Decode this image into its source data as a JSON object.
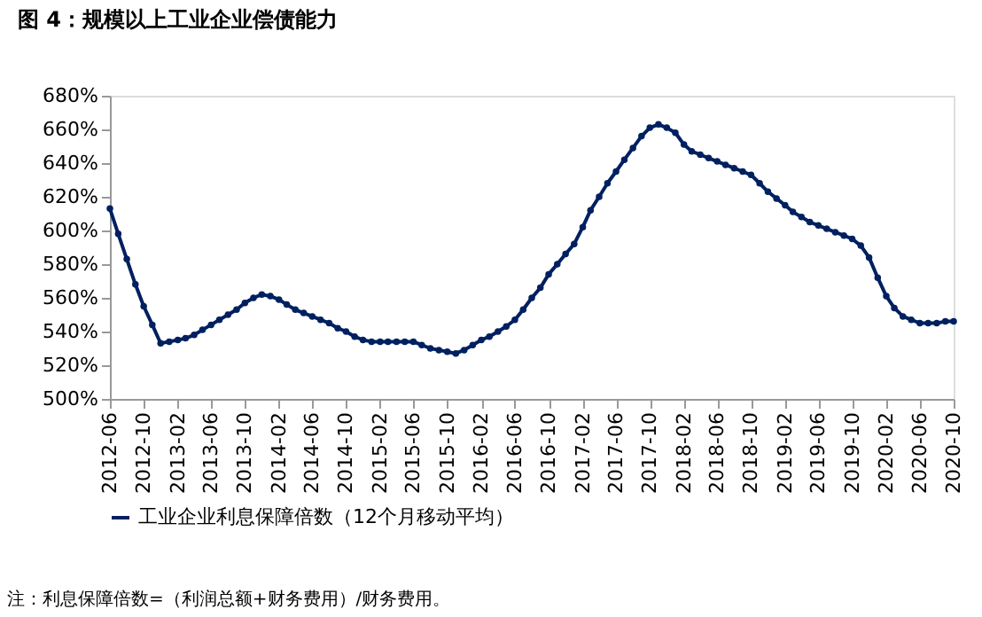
{
  "chart_data": {
    "type": "line",
    "title": "图 4：规模以上工业企业偿债能力",
    "x": [
      "2012-06",
      "2012-07",
      "2012-08",
      "2012-09",
      "2012-10",
      "2012-11",
      "2012-12",
      "2013-01",
      "2013-02",
      "2013-03",
      "2013-04",
      "2013-05",
      "2013-06",
      "2013-07",
      "2013-08",
      "2013-09",
      "2013-10",
      "2013-11",
      "2013-12",
      "2014-01",
      "2014-02",
      "2014-03",
      "2014-04",
      "2014-05",
      "2014-06",
      "2014-07",
      "2014-08",
      "2014-09",
      "2014-10",
      "2014-11",
      "2014-12",
      "2015-01",
      "2015-02",
      "2015-03",
      "2015-04",
      "2015-05",
      "2015-06",
      "2015-07",
      "2015-08",
      "2015-09",
      "2015-10",
      "2015-11",
      "2015-12",
      "2016-01",
      "2016-02",
      "2016-03",
      "2016-04",
      "2016-05",
      "2016-06",
      "2016-07",
      "2016-08",
      "2016-09",
      "2016-10",
      "2016-11",
      "2016-12",
      "2017-01",
      "2017-02",
      "2017-03",
      "2017-04",
      "2017-05",
      "2017-06",
      "2017-07",
      "2017-08",
      "2017-09",
      "2017-10",
      "2017-11",
      "2017-12",
      "2018-01",
      "2018-02",
      "2018-03",
      "2018-04",
      "2018-05",
      "2018-06",
      "2018-07",
      "2018-08",
      "2018-09",
      "2018-10",
      "2018-11",
      "2018-12",
      "2019-01",
      "2019-02",
      "2019-03",
      "2019-04",
      "2019-05",
      "2019-06",
      "2019-07",
      "2019-08",
      "2019-09",
      "2019-10",
      "2019-11",
      "2019-12",
      "2020-01",
      "2020-02",
      "2020-03",
      "2020-04",
      "2020-05",
      "2020-06",
      "2020-07",
      "2020-08",
      "2020-09",
      "2020-10"
    ],
    "series": [
      {
        "name": "工业企业利息保障倍数（12个月移动平均）",
        "color": "#002060",
        "values": [
          613,
          598,
          583,
          568,
          555,
          544,
          533,
          534,
          535,
          536,
          538,
          541,
          544,
          547,
          550,
          553,
          557,
          560,
          562,
          561,
          559,
          556,
          553,
          551,
          549,
          547,
          545,
          542,
          540,
          537,
          535,
          534,
          534,
          534,
          534,
          534,
          534,
          532,
          530,
          529,
          528,
          527,
          529,
          532,
          535,
          537,
          540,
          543,
          547,
          553,
          560,
          566,
          574,
          580,
          586,
          592,
          602,
          612,
          620,
          628,
          635,
          642,
          649,
          656,
          661,
          663,
          661,
          658,
          651,
          647,
          645,
          643,
          641,
          639,
          637,
          635,
          633,
          628,
          623,
          619,
          615,
          611,
          608,
          605,
          603,
          601,
          599,
          597,
          595,
          591,
          584,
          572,
          561,
          554,
          549,
          547,
          545,
          545,
          545,
          546,
          546
        ]
      }
    ],
    "ylim": [
      500,
      680
    ],
    "yticks": [
      {
        "value": 500,
        "label": "500%"
      },
      {
        "value": 520,
        "label": "520%"
      },
      {
        "value": 540,
        "label": "540%"
      },
      {
        "value": 560,
        "label": "560%"
      },
      {
        "value": 580,
        "label": "580%"
      },
      {
        "value": 600,
        "label": "600%"
      },
      {
        "value": 620,
        "label": "620%"
      },
      {
        "value": 640,
        "label": "640%"
      },
      {
        "value": 660,
        "label": "660%"
      },
      {
        "value": 680,
        "label": "680%"
      }
    ],
    "xlim": [
      "2012-06",
      "2020-10"
    ],
    "xticks": [
      "2012-06",
      "2012-10",
      "2013-02",
      "2013-06",
      "2013-10",
      "2014-02",
      "2014-06",
      "2014-10",
      "2015-02",
      "2015-06",
      "2015-10",
      "2016-02",
      "2016-06",
      "2016-10",
      "2017-02",
      "2017-06",
      "2017-10",
      "2018-02",
      "2018-06",
      "2018-10",
      "2019-02",
      "2019-06",
      "2019-10",
      "2020-02",
      "2020-06",
      "2020-10"
    ],
    "marker": "circle",
    "line_style": "solid",
    "grid": false,
    "legend": "bottom",
    "annotations": [
      "注：利息保障倍数=（利润总额+财务费用）/财务费用。"
    ]
  }
}
